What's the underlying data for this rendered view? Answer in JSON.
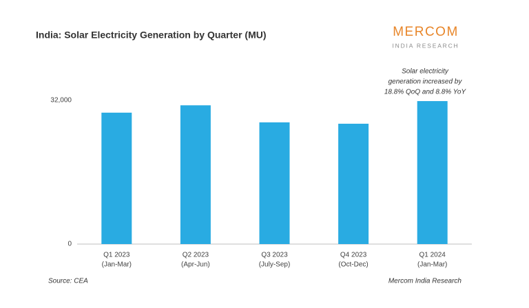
{
  "chart_data": {
    "type": "bar",
    "title": "India: Solar Electricity Generation by Quarter (MU)",
    "logo": "MERCOM",
    "logo_subtitle": "INDIA RESEARCH",
    "annotation": [
      "Solar electricity",
      "generation increased by",
      "18.8% QoQ and 8.8% YoY"
    ],
    "source": "Source: CEA",
    "credit": "Mercom India Research",
    "categories": [
      "Q1 2023",
      "Q2 2023",
      "Q3 2023",
      "Q4 2023",
      "Q1 2024"
    ],
    "category_periods": [
      "(Jan-Mar)",
      "(Apr-Jun)",
      "(July-Sep)",
      "(Oct-Dec)",
      "(Jan-Mar)"
    ],
    "values": [
      29265,
      30900,
      27100,
      26800,
      31840
    ],
    "color": "#29abe2",
    "ylim": [
      0,
      32000
    ],
    "yticks": [
      0,
      {
        "value": 32000,
        "label": "32,000"
      }
    ],
    "grid": false
  }
}
